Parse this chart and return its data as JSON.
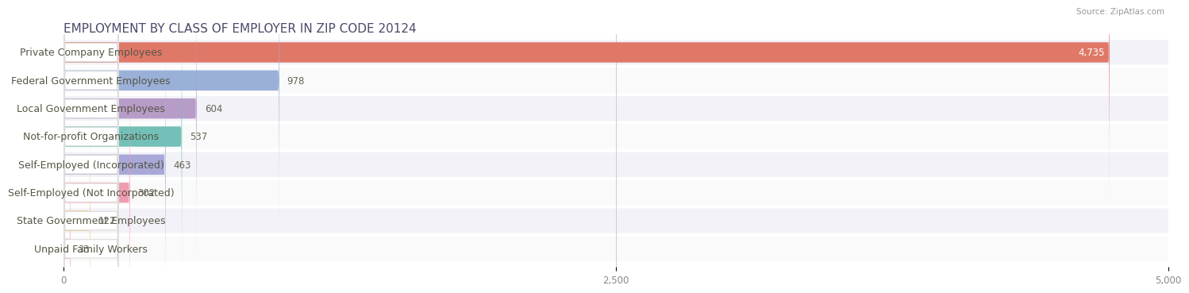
{
  "title": "EMPLOYMENT BY CLASS OF EMPLOYER IN ZIP CODE 20124",
  "source": "Source: ZipAtlas.com",
  "categories": [
    "Private Company Employees",
    "Federal Government Employees",
    "Local Government Employees",
    "Not-for-profit Organizations",
    "Self-Employed (Incorporated)",
    "Self-Employed (Not Incorporated)",
    "State Government Employees",
    "Unpaid Family Workers"
  ],
  "values": [
    4735,
    978,
    604,
    537,
    463,
    302,
    122,
    33
  ],
  "bar_colors": [
    "#e07868",
    "#9ab0d8",
    "#b89cc8",
    "#72c0b8",
    "#a8a8d8",
    "#f09cb0",
    "#f8c878",
    "#f0a8a0"
  ],
  "row_bg_even": "#f2f2f8",
  "row_bg_odd": "#fafafa",
  "xlim": [
    0,
    5000
  ],
  "xticks": [
    0,
    2500,
    5000
  ],
  "xtick_labels": [
    "0",
    "2,500",
    "5,000"
  ],
  "title_fontsize": 11,
  "label_fontsize": 9,
  "value_fontsize": 8.5,
  "background_color": "#ffffff",
  "title_color": "#4a4a6a",
  "label_color": "#555544",
  "value_color_inside": "#ffffff",
  "value_color_outside": "#666655"
}
